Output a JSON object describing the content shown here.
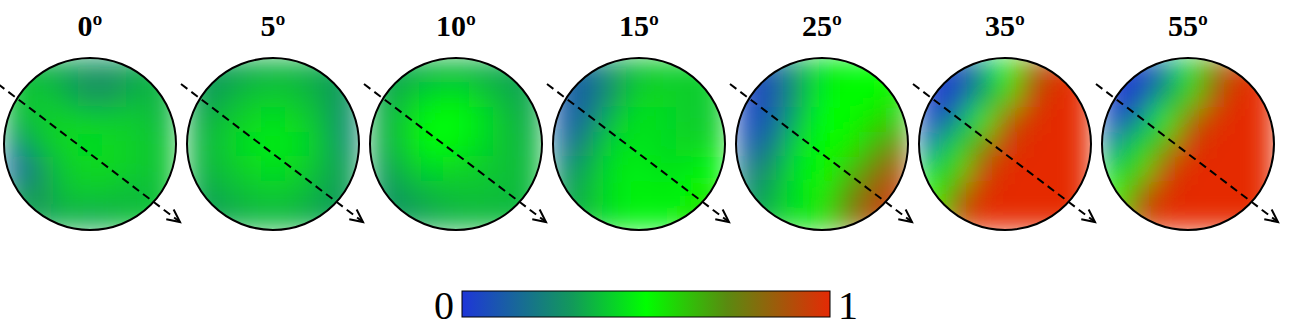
{
  "chart_data": [
    {
      "type": "heatmap",
      "title": "0º",
      "cells": [
        [
          0.35,
          0.35,
          0.32,
          0.28,
          0.28,
          0.33,
          0.35
        ],
        [
          0.38,
          0.4,
          0.34,
          0.28,
          0.3,
          0.36,
          0.35
        ],
        [
          0.35,
          0.4,
          0.42,
          0.4,
          0.4,
          0.4,
          0.35
        ],
        [
          0.25,
          0.38,
          0.42,
          0.44,
          0.42,
          0.4,
          0.38
        ],
        [
          0.12,
          0.3,
          0.4,
          0.42,
          0.42,
          0.4,
          0.38
        ],
        [
          0.3,
          0.3,
          0.38,
          0.4,
          0.38,
          0.36,
          0.38
        ],
        [
          0.35,
          0.3,
          0.35,
          0.32,
          0.35,
          0.38,
          0.38
        ]
      ]
    },
    {
      "type": "heatmap",
      "title": "5º",
      "cells": [
        [
          0.3,
          0.3,
          0.33,
          0.35,
          0.35,
          0.32,
          0.3
        ],
        [
          0.3,
          0.33,
          0.38,
          0.4,
          0.38,
          0.33,
          0.28
        ],
        [
          0.33,
          0.38,
          0.42,
          0.44,
          0.42,
          0.36,
          0.25
        ],
        [
          0.35,
          0.4,
          0.44,
          0.47,
          0.44,
          0.38,
          0.25
        ],
        [
          0.35,
          0.38,
          0.42,
          0.44,
          0.42,
          0.36,
          0.3
        ],
        [
          0.32,
          0.35,
          0.38,
          0.4,
          0.38,
          0.33,
          0.3
        ],
        [
          0.3,
          0.32,
          0.35,
          0.36,
          0.35,
          0.32,
          0.3
        ]
      ]
    },
    {
      "type": "heatmap",
      "title": "10º",
      "cells": [
        [
          0.3,
          0.32,
          0.35,
          0.36,
          0.34,
          0.32,
          0.3
        ],
        [
          0.32,
          0.38,
          0.43,
          0.45,
          0.4,
          0.35,
          0.32
        ],
        [
          0.33,
          0.42,
          0.5,
          0.5,
          0.45,
          0.38,
          0.33
        ],
        [
          0.33,
          0.42,
          0.5,
          0.48,
          0.43,
          0.38,
          0.35
        ],
        [
          0.3,
          0.38,
          0.43,
          0.42,
          0.4,
          0.38,
          0.36
        ],
        [
          0.28,
          0.32,
          0.36,
          0.38,
          0.38,
          0.37,
          0.36
        ],
        [
          0.28,
          0.3,
          0.33,
          0.35,
          0.36,
          0.36,
          0.36
        ]
      ]
    },
    {
      "type": "heatmap",
      "title": "15º",
      "cells": [
        [
          0.12,
          0.15,
          0.3,
          0.38,
          0.4,
          0.4,
          0.4
        ],
        [
          0.12,
          0.15,
          0.3,
          0.42,
          0.42,
          0.4,
          0.4
        ],
        [
          0.1,
          0.2,
          0.38,
          0.45,
          0.43,
          0.4,
          0.4
        ],
        [
          0.15,
          0.3,
          0.43,
          0.45,
          0.43,
          0.42,
          0.42
        ],
        [
          0.25,
          0.35,
          0.45,
          0.47,
          0.44,
          0.45,
          0.5
        ],
        [
          0.3,
          0.38,
          0.45,
          0.48,
          0.46,
          0.5,
          0.55
        ],
        [
          0.32,
          0.38,
          0.45,
          0.48,
          0.48,
          0.55,
          0.6
        ]
      ]
    },
    {
      "type": "heatmap",
      "title": "25º",
      "cells": [
        [
          0.05,
          0.1,
          0.3,
          0.45,
          0.48,
          0.5,
          0.5
        ],
        [
          0.05,
          0.1,
          0.3,
          0.48,
          0.5,
          0.5,
          0.55
        ],
        [
          0.05,
          0.12,
          0.35,
          0.5,
          0.5,
          0.55,
          0.6
        ],
        [
          0.1,
          0.2,
          0.42,
          0.5,
          0.52,
          0.62,
          0.75
        ],
        [
          0.2,
          0.3,
          0.45,
          0.5,
          0.6,
          0.75,
          0.88
        ],
        [
          0.25,
          0.35,
          0.45,
          0.52,
          0.7,
          0.85,
          0.95
        ],
        [
          0.3,
          0.38,
          0.45,
          0.55,
          0.75,
          0.9,
          0.97
        ]
      ]
    },
    {
      "type": "heatmap",
      "title": "35º",
      "cells": [
        [
          0.02,
          0.05,
          0.2,
          0.5,
          0.8,
          0.95,
          1
        ],
        [
          0.02,
          0.05,
          0.3,
          0.55,
          0.9,
          1,
          1
        ],
        [
          0.05,
          0.2,
          0.5,
          0.85,
          0.98,
          1,
          1
        ],
        [
          0.15,
          0.45,
          0.7,
          0.95,
          1,
          1,
          1
        ],
        [
          0.4,
          0.55,
          0.9,
          1,
          1,
          1,
          1
        ],
        [
          0.5,
          0.75,
          0.98,
          1,
          1,
          1,
          1
        ],
        [
          0.55,
          0.9,
          1,
          1,
          1,
          1,
          1
        ]
      ]
    },
    {
      "type": "heatmap",
      "title": "55º",
      "cells": [
        [
          0.02,
          0.02,
          0.15,
          0.45,
          0.75,
          0.95,
          1
        ],
        [
          0.02,
          0.05,
          0.3,
          0.55,
          0.85,
          1,
          1
        ],
        [
          0.05,
          0.2,
          0.5,
          0.8,
          0.98,
          1,
          1
        ],
        [
          0.2,
          0.45,
          0.65,
          0.95,
          1,
          1,
          1
        ],
        [
          0.4,
          0.55,
          0.9,
          1,
          1,
          1,
          1
        ],
        [
          0.5,
          0.8,
          0.98,
          1,
          1,
          1,
          1
        ],
        [
          0.6,
          0.92,
          1,
          1,
          1,
          1,
          1
        ]
      ]
    }
  ],
  "colorbar": {
    "range": [
      0,
      1
    ],
    "ticks": [
      0,
      1
    ]
  }
}
